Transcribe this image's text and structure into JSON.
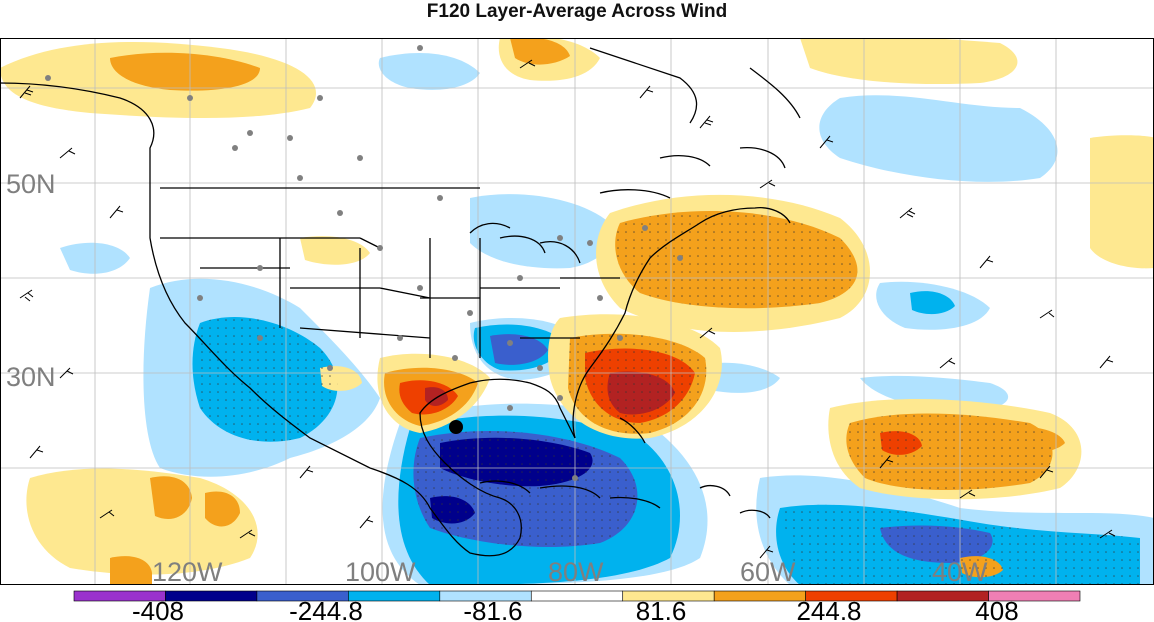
{
  "title": "F120 Layer-Average Across Wind",
  "latitude_labels": [
    "50N",
    "30N"
  ],
  "longitude_labels": [
    "120W",
    "100W",
    "80W",
    "60W",
    "40W"
  ],
  "colorbar": {
    "colors": [
      "#9a32cd",
      "#00008b",
      "#3a5fcd",
      "#00b2ee",
      "#b0e2ff",
      "#ffffff",
      "#fee890",
      "#f4a11c",
      "#ee4000",
      "#b22222",
      "#f07fb4"
    ],
    "tick_labels": [
      "-408",
      "-244.8",
      "-81.6",
      "81.6",
      "244.8",
      "408"
    ]
  },
  "palette": {
    "neg1": "#b0e2ff",
    "neg2": "#00b2ee",
    "neg3": "#3a5fcd",
    "neg4": "#00008b",
    "pos1": "#fee890",
    "pos2": "#f4a11c",
    "pos3": "#ee4000",
    "pos4": "#b22222"
  }
}
